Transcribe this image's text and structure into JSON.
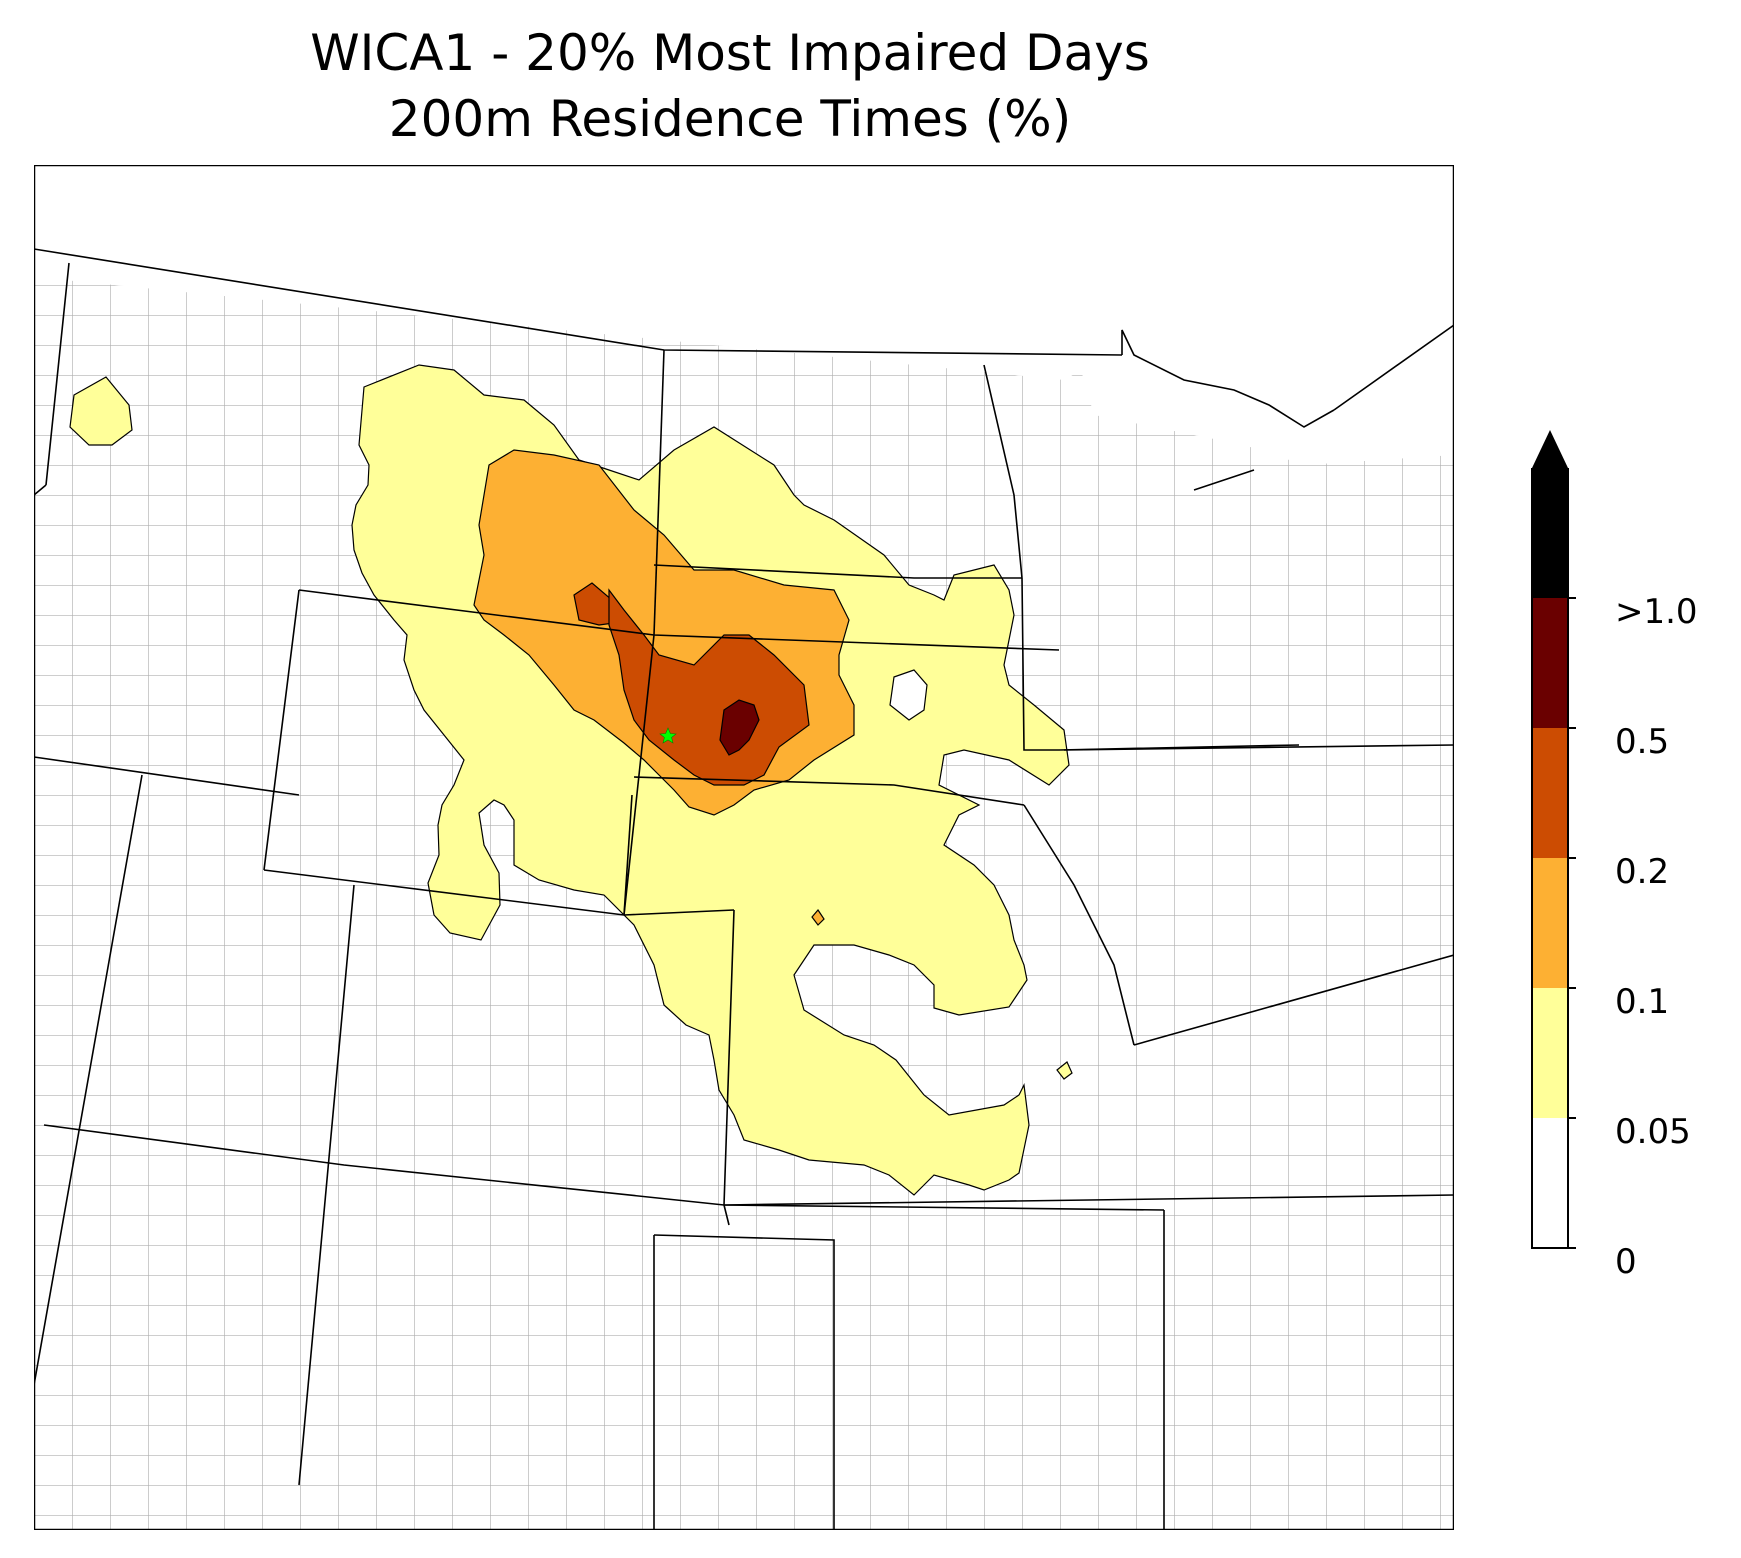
{
  "title_line1": "WICA1 - 20% Most Impaired Days",
  "title_line2": "200m Residence Times (%)",
  "colors": {
    "level_0.05": "#ffff99",
    "level_0.1": "#fdb033",
    "level_0.2": "#cc4c02",
    "level_0.5": "#6a0000",
    "level_1.0": "#000000",
    "site_marker": "#00ff00"
  },
  "colorbar": {
    "ticks": [
      "0",
      "0.05",
      "0.1",
      "0.2",
      "0.5",
      ">1.0"
    ],
    "extend": "max"
  },
  "site_marker_icon": "star-icon"
}
